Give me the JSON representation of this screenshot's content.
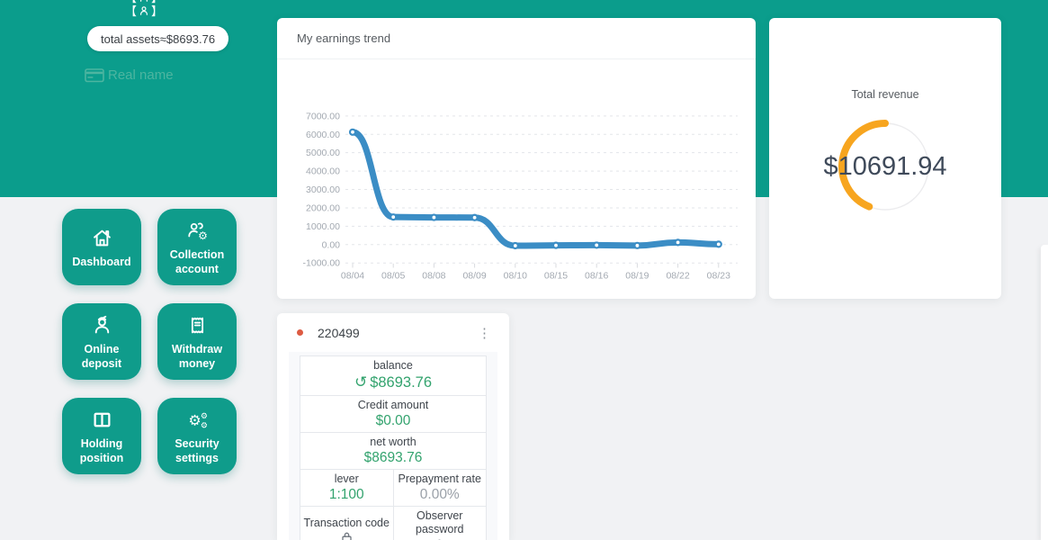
{
  "colors": {
    "teal": "#0b9d8c",
    "page_bg": "#f1f2f4",
    "chart_line": "#3b8dc5",
    "gauge_arc": "#f7a51f",
    "gauge_track": "#ececee",
    "money_green": "#33a36e",
    "alert_dot": "#dd5b42"
  },
  "icons": {
    "gear_glyph": "⚙",
    "refresh_glyph": "↺",
    "kebab_glyph": "⋮"
  },
  "topbar": {
    "bracket_left": "【",
    "bracket_right": "】",
    "total_assets_pill": "total assets≈$8693.76",
    "real_name_label": "Real name"
  },
  "menu": {
    "items": [
      {
        "label": "Dashboard",
        "icon": "home-icon"
      },
      {
        "label": "Collection account",
        "icon": "users-gear-icon"
      },
      {
        "label": "Online deposit",
        "icon": "person-deposit-icon"
      },
      {
        "label": "Withdraw money",
        "icon": "receipt-icon"
      },
      {
        "label": "Holding position",
        "icon": "columns-icon"
      },
      {
        "label": "Security settings",
        "icon": "gears-icon"
      }
    ]
  },
  "earnings_card": {
    "title": "My earnings trend"
  },
  "chart_data": {
    "type": "line",
    "title": "My earnings trend",
    "x": [
      "08/04",
      "08/05",
      "08/08",
      "08/09",
      "08/10",
      "08/15",
      "08/16",
      "08/19",
      "08/22",
      "08/23"
    ],
    "values": [
      6120,
      1500,
      1480,
      1470,
      -60,
      -40,
      -30,
      -50,
      120,
      20
    ],
    "ylim": [
      -1000,
      7000
    ],
    "ytick_step": 1000,
    "grid": "dashed-horizontal",
    "legend": "none",
    "line_color": "#3b8dc5",
    "marker": "circle-white-fill"
  },
  "revenue_card": {
    "title": "Total revenue",
    "value": "$10691.94",
    "arc_percent": 0.44
  },
  "account_card": {
    "account_id": "220499",
    "balance": {
      "label": "balance",
      "value": "$8693.76"
    },
    "credit": {
      "label": "Credit amount",
      "value": "$0.00"
    },
    "net_worth": {
      "label": "net worth",
      "value": "$8693.76"
    },
    "lever": {
      "label": "lever",
      "value": "1:100"
    },
    "prepayment": {
      "label": "Prepayment rate",
      "value": "0.00%"
    },
    "transaction_code": {
      "label": "Transaction code"
    },
    "observer_password": {
      "label": "Observer password"
    }
  }
}
